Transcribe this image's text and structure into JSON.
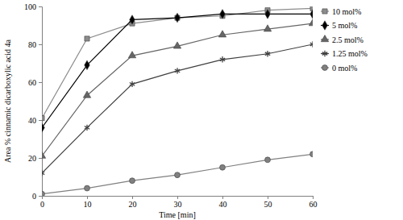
{
  "chart_data": {
    "type": "line",
    "x_label": "Time [min]",
    "y_label": "Area % cinnamic dicarboxylic acid 4a",
    "x": [
      0,
      10,
      20,
      30,
      40,
      50,
      60
    ],
    "xlim": [
      0,
      60
    ],
    "xticks": [
      0,
      10,
      20,
      30,
      40,
      50,
      60
    ],
    "ylim": [
      0,
      100
    ],
    "yticks": [
      0,
      20,
      40,
      60,
      80,
      100
    ],
    "grid": false,
    "legend": "right",
    "series": [
      {
        "name": "10 mol%",
        "color": "#8c8c8c",
        "marker": "square",
        "values": [
          41,
          83,
          91,
          94,
          95,
          98,
          99
        ]
      },
      {
        "name": "5 mol%",
        "color": "#000000",
        "marker": "diamond",
        "values": [
          36,
          69,
          93,
          94,
          96,
          96,
          96
        ]
      },
      {
        "name": "2.5 mol%",
        "color": "#666666",
        "marker": "triangle",
        "values": [
          21,
          53,
          74,
          79,
          85,
          88,
          91
        ]
      },
      {
        "name": "1.25 mol%",
        "color": "#404040",
        "marker": "asterisk",
        "values": [
          12,
          36,
          59,
          66,
          72,
          75,
          80
        ]
      },
      {
        "name": "0 mol%",
        "color": "#808080",
        "marker": "circle",
        "values": [
          1,
          4,
          8,
          11,
          15,
          19,
          22
        ]
      }
    ]
  }
}
